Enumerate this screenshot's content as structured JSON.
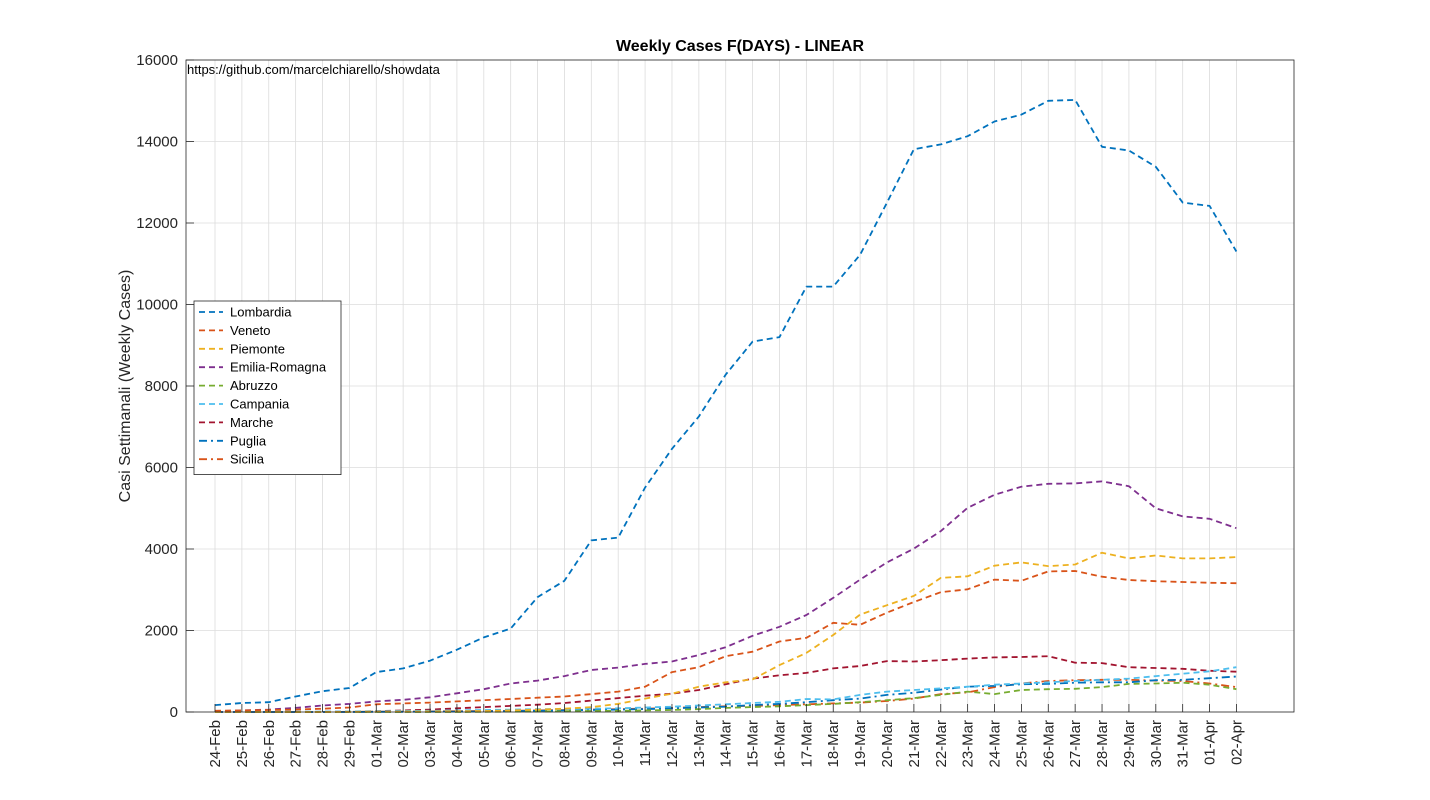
{
  "chart_data": {
    "type": "line",
    "title": "Weekly Cases F(DAYS) - LINEAR",
    "xlabel": "",
    "ylabel": "Casi Settimanali (Weekly Cases)",
    "annotation": "https://github.com/marcelchiarello/showdata",
    "ylim": [
      0,
      16000
    ],
    "yticks": [
      0,
      2000,
      4000,
      6000,
      8000,
      10000,
      12000,
      14000,
      16000
    ],
    "grid": true,
    "legend_position": "middle-left",
    "categories": [
      "24-Feb",
      "25-Feb",
      "26-Feb",
      "27-Feb",
      "28-Feb",
      "29-Feb",
      "01-Mar",
      "02-Mar",
      "03-Mar",
      "04-Mar",
      "05-Mar",
      "06-Mar",
      "07-Mar",
      "08-Mar",
      "09-Mar",
      "10-Mar",
      "11-Mar",
      "12-Mar",
      "13-Mar",
      "14-Mar",
      "15-Mar",
      "16-Mar",
      "17-Mar",
      "18-Mar",
      "19-Mar",
      "20-Mar",
      "21-Mar",
      "22-Mar",
      "23-Mar",
      "24-Mar",
      "25-Mar",
      "26-Mar",
      "27-Mar",
      "28-Mar",
      "29-Mar",
      "30-Mar",
      "31-Mar",
      "01-Apr",
      "02-Apr"
    ],
    "series": [
      {
        "name": "Lombardia",
        "color": "#0072BD",
        "dash": "dashed",
        "values": [
          170,
          220,
          240,
          380,
          510,
          590,
          980,
          1070,
          1260,
          1530,
          1830,
          2050,
          2820,
          3220,
          4210,
          4280,
          5510,
          6460,
          7250,
          8280,
          9090,
          9200,
          10440,
          10440,
          11220,
          12500,
          13810,
          13930,
          14130,
          14490,
          14660,
          15000,
          15020,
          13870,
          13780,
          13380,
          12500,
          12420,
          11300
        ]
      },
      {
        "name": "Veneto",
        "color": "#D95319",
        "dash": "dashed",
        "values": [
          30,
          40,
          50,
          60,
          80,
          110,
          190,
          210,
          230,
          260,
          290,
          320,
          350,
          380,
          440,
          500,
          620,
          980,
          1100,
          1370,
          1480,
          1730,
          1820,
          2190,
          2140,
          2440,
          2700,
          2940,
          3010,
          3250,
          3220,
          3450,
          3460,
          3320,
          3240,
          3210,
          3190,
          3170,
          3160
        ]
      },
      {
        "name": "Piemonte",
        "color": "#EDB120",
        "dash": "dashed",
        "values": [
          0,
          0,
          0,
          0,
          0,
          5,
          10,
          10,
          15,
          20,
          25,
          40,
          60,
          80,
          120,
          200,
          330,
          450,
          620,
          730,
          800,
          1150,
          1450,
          1890,
          2390,
          2620,
          2850,
          3290,
          3330,
          3590,
          3670,
          3580,
          3620,
          3910,
          3770,
          3840,
          3770,
          3770,
          3800
        ]
      },
      {
        "name": "Emilia-Romagna",
        "color": "#7E2F8E",
        "dash": "dashed",
        "values": [
          20,
          40,
          60,
          100,
          160,
          200,
          260,
          300,
          360,
          460,
          560,
          700,
          770,
          880,
          1030,
          1090,
          1180,
          1240,
          1400,
          1590,
          1870,
          2090,
          2380,
          2800,
          3250,
          3670,
          4010,
          4440,
          5010,
          5330,
          5530,
          5600,
          5610,
          5660,
          5540,
          5000,
          4800,
          4740,
          4510
        ]
      },
      {
        "name": "Abruzzo",
        "color": "#77AC30",
        "dash": "dashed",
        "values": [
          0,
          0,
          0,
          0,
          0,
          0,
          0,
          0,
          0,
          0,
          5,
          10,
          15,
          20,
          25,
          30,
          40,
          50,
          70,
          100,
          120,
          140,
          170,
          200,
          240,
          290,
          340,
          420,
          500,
          440,
          540,
          560,
          570,
          610,
          690,
          700,
          720,
          670,
          560
        ]
      },
      {
        "name": "Campania",
        "color": "#4DBEEE",
        "dash": "dashed",
        "values": [
          0,
          0,
          5,
          10,
          10,
          15,
          20,
          25,
          30,
          40,
          50,
          60,
          70,
          70,
          80,
          90,
          110,
          130,
          160,
          190,
          220,
          250,
          320,
          310,
          420,
          500,
          540,
          580,
          620,
          670,
          700,
          730,
          760,
          790,
          820,
          880,
          940,
          1000,
          1100
        ]
      },
      {
        "name": "Marche",
        "color": "#A2142F",
        "dash": "dashed",
        "values": [
          0,
          0,
          0,
          0,
          5,
          10,
          20,
          40,
          60,
          90,
          120,
          150,
          180,
          220,
          280,
          340,
          400,
          450,
          540,
          680,
          820,
          900,
          960,
          1070,
          1130,
          1250,
          1240,
          1270,
          1310,
          1340,
          1350,
          1370,
          1210,
          1200,
          1100,
          1080,
          1060,
          1010,
          990
        ]
      },
      {
        "name": "Puglia",
        "color": "#0072BD",
        "dash": "dashdot",
        "values": [
          0,
          0,
          0,
          0,
          0,
          0,
          5,
          5,
          10,
          10,
          15,
          20,
          30,
          40,
          50,
          60,
          70,
          90,
          110,
          130,
          170,
          200,
          240,
          290,
          330,
          420,
          470,
          550,
          620,
          640,
          680,
          690,
          720,
          730,
          730,
          780,
          790,
          830,
          870
        ]
      },
      {
        "name": "Sicilia",
        "color": "#D95319",
        "dash": "dashdot",
        "values": [
          0,
          0,
          0,
          0,
          0,
          5,
          10,
          10,
          15,
          20,
          25,
          30,
          40,
          50,
          60,
          70,
          80,
          100,
          120,
          140,
          150,
          170,
          190,
          210,
          230,
          270,
          330,
          440,
          480,
          610,
          700,
          760,
          780,
          790,
          790,
          770,
          760,
          700,
          610
        ]
      }
    ]
  }
}
